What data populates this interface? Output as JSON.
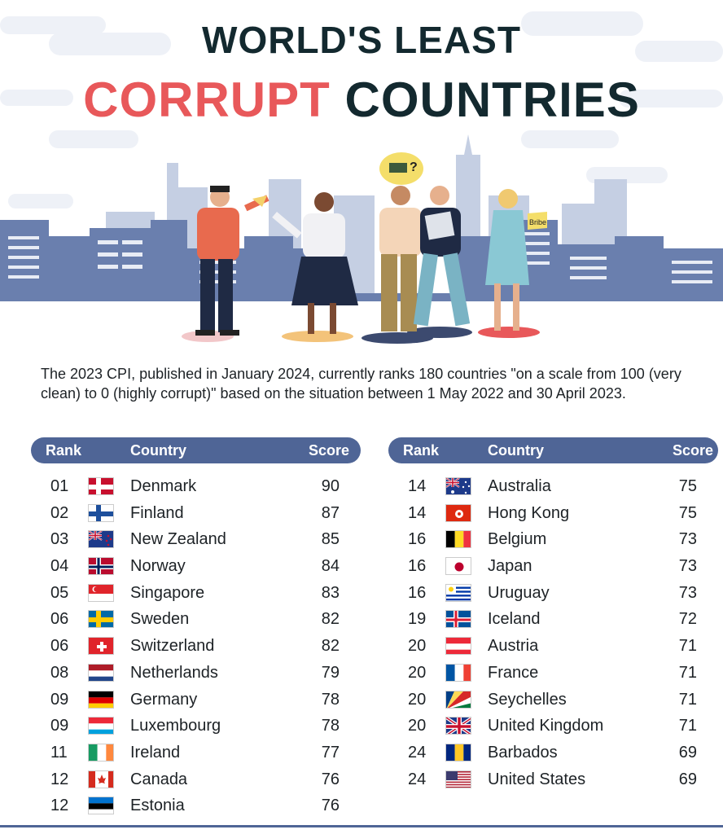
{
  "title": {
    "line1": "WORLD'S LEAST",
    "line2_red": "CORRUPT",
    "line2_dark": "COUNTRIES"
  },
  "illustration": {
    "bribe_label": "Bribe",
    "question_mark": "?"
  },
  "intro": "The 2023 CPI, published in January 2024, currently ranks 180 countries \"on a scale from 100 (very clean) to 0 (highly corrupt)\" based on the situation between 1 May 2022 and 30 April 2023.",
  "headers": {
    "rank": "Rank",
    "country": "Country",
    "score": "Score"
  },
  "left_table": [
    {
      "rank": "01",
      "country": "Denmark",
      "score": "90",
      "flag": "dk"
    },
    {
      "rank": "02",
      "country": "Finland",
      "score": "87",
      "flag": "fi"
    },
    {
      "rank": "03",
      "country": "New Zealand",
      "score": "85",
      "flag": "nz"
    },
    {
      "rank": "04",
      "country": "Norway",
      "score": "84",
      "flag": "no"
    },
    {
      "rank": "05",
      "country": "Singapore",
      "score": "83",
      "flag": "sg"
    },
    {
      "rank": "06",
      "country": "Sweden",
      "score": "82",
      "flag": "se"
    },
    {
      "rank": "06",
      "country": "Switzerland",
      "score": "82",
      "flag": "ch"
    },
    {
      "rank": "08",
      "country": "Netherlands",
      "score": "79",
      "flag": "nl"
    },
    {
      "rank": "09",
      "country": "Germany",
      "score": "78",
      "flag": "de"
    },
    {
      "rank": "09",
      "country": "Luxembourg",
      "score": "78",
      "flag": "lu"
    },
    {
      "rank": "11",
      "country": "Ireland",
      "score": "77",
      "flag": "ie"
    },
    {
      "rank": "12",
      "country": "Canada",
      "score": "76",
      "flag": "ca"
    },
    {
      "rank": "12",
      "country": "Estonia",
      "score": "76",
      "flag": "ee"
    }
  ],
  "right_table": [
    {
      "rank": "14",
      "country": "Australia",
      "score": "75",
      "flag": "au"
    },
    {
      "rank": "14",
      "country": "Hong Kong",
      "score": "75",
      "flag": "hk"
    },
    {
      "rank": "16",
      "country": "Belgium",
      "score": "73",
      "flag": "be"
    },
    {
      "rank": "16",
      "country": "Japan",
      "score": "73",
      "flag": "jp"
    },
    {
      "rank": "16",
      "country": "Uruguay",
      "score": "73",
      "flag": "uy"
    },
    {
      "rank": "19",
      "country": "Iceland",
      "score": "72",
      "flag": "is"
    },
    {
      "rank": "20",
      "country": "Austria",
      "score": "71",
      "flag": "at"
    },
    {
      "rank": "20",
      "country": "France",
      "score": "71",
      "flag": "fr"
    },
    {
      "rank": "20",
      "country": "Seychelles",
      "score": "71",
      "flag": "sc"
    },
    {
      "rank": "20",
      "country": "United Kingdom",
      "score": "71",
      "flag": "gb"
    },
    {
      "rank": "24",
      "country": "Barbados",
      "score": "69",
      "flag": "bb"
    },
    {
      "rank": "24",
      "country": "United States",
      "score": "69",
      "flag": "us"
    }
  ],
  "colors": {
    "accent_red": "#e8585a",
    "dark": "#13292f",
    "header_bar": "#4f6596",
    "skyline": "#6a7fae"
  }
}
